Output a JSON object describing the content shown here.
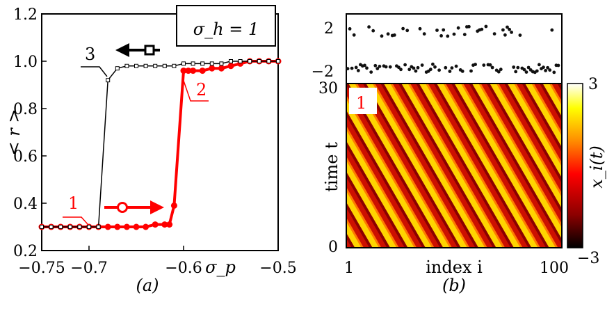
{
  "chart_data": [
    {
      "type": "line",
      "panel": "(a)",
      "xlabel": "σ_p",
      "ylabel": "< r >",
      "xlim": [
        -0.75,
        -0.5
      ],
      "ylim": [
        0.2,
        1.2
      ],
      "xticks": [
        "−0.75",
        "−0.7",
        "−0.6",
        "−0.5"
      ],
      "yticks": [
        "0.2",
        "0.4",
        "0.6",
        "0.8",
        "1.0",
        "1.2"
      ],
      "annotation": "σ_h = 1",
      "grid": false,
      "series": [
        {
          "name": "1",
          "color": "#ff0000",
          "marker": "circle",
          "x": [
            -0.75,
            -0.74,
            -0.73,
            -0.72,
            -0.71,
            -0.7,
            -0.69,
            -0.68,
            -0.67,
            -0.66,
            -0.65,
            -0.64,
            -0.63,
            -0.62,
            -0.615,
            -0.61,
            -0.6,
            -0.595,
            -0.59,
            -0.58,
            -0.57,
            -0.56,
            -0.55,
            -0.54,
            -0.53,
            -0.52,
            -0.51,
            -0.5
          ],
          "y": [
            0.3,
            0.3,
            0.3,
            0.3,
            0.3,
            0.3,
            0.3,
            0.3,
            0.3,
            0.3,
            0.3,
            0.3,
            0.31,
            0.31,
            0.31,
            0.39,
            0.96,
            0.96,
            0.96,
            0.96,
            0.97,
            0.97,
            0.98,
            0.99,
            1.0,
            1.0,
            1.0,
            1.0
          ]
        },
        {
          "name": "3",
          "color": "#000000",
          "marker": "square",
          "x": [
            -0.5,
            -0.51,
            -0.52,
            -0.53,
            -0.54,
            -0.55,
            -0.56,
            -0.57,
            -0.58,
            -0.59,
            -0.6,
            -0.61,
            -0.62,
            -0.63,
            -0.64,
            -0.65,
            -0.66,
            -0.67,
            -0.68,
            -0.69,
            -0.7,
            -0.71,
            -0.72,
            -0.73,
            -0.74,
            -0.75
          ],
          "y": [
            1.0,
            1.0,
            1.0,
            1.0,
            1.0,
            1.0,
            0.99,
            0.99,
            0.99,
            0.99,
            0.99,
            0.98,
            0.98,
            0.98,
            0.98,
            0.98,
            0.98,
            0.97,
            0.92,
            0.3,
            0.3,
            0.3,
            0.3,
            0.3,
            0.3,
            0.3
          ]
        }
      ],
      "labels": [
        {
          "text": "1",
          "color": "#ff0000"
        },
        {
          "text": "2",
          "color": "#ff0000"
        },
        {
          "text": "3",
          "color": "#000000"
        }
      ]
    },
    {
      "type": "heatmap",
      "panel": "(b)",
      "xlabel": "index i",
      "ylabel": "time t",
      "xticks": [
        "1",
        "100"
      ],
      "yticks": [
        "0",
        "30"
      ],
      "colorbar_label": "x_i(t)",
      "colorbar_ticks": [
        "3",
        "−3"
      ],
      "colormap": [
        "#000000",
        "#8b0000",
        "#ff0000",
        "#ff8c00",
        "#ffff00",
        "#ffffff"
      ],
      "inset_label": "1",
      "top_strip": {
        "type": "scatter",
        "yticks": [
          "2",
          "−2"
        ]
      }
    }
  ]
}
